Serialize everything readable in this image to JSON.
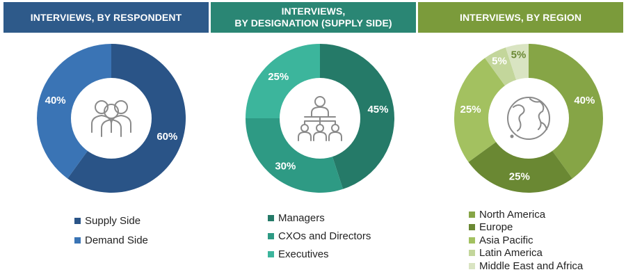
{
  "colors": {
    "header_1": "#2e5a8a",
    "header_2": "#2a8674",
    "header_3": "#7b9b3b",
    "center": "#ffffff",
    "icon": "#8a8a8a"
  },
  "chart_data": [
    {
      "type": "pie",
      "title_lines": [
        "INTERVIEWS, BY RESPONDENT"
      ],
      "icon": "people-group-icon",
      "series": [
        {
          "name": "Supply Side",
          "value": 60,
          "label": "60%",
          "color": "#2a5487",
          "label_color": "#ffffff"
        },
        {
          "name": "Demand Side",
          "value": 40,
          "label": "40%",
          "color": "#3a74b5",
          "label_color": "#ffffff"
        }
      ]
    },
    {
      "type": "pie",
      "title_lines": [
        "INTERVIEWS,",
        "BY DESIGNATION (SUPPLY SIDE)"
      ],
      "icon": "org-chart-icon",
      "series": [
        {
          "name": "Managers",
          "value": 45,
          "label": "45%",
          "color": "#257a68",
          "label_color": "#ffffff"
        },
        {
          "name": "CXOs and Directors",
          "value": 30,
          "label": "30%",
          "color": "#2e9a84",
          "label_color": "#ffffff"
        },
        {
          "name": "Executives",
          "value": 25,
          "label": "25%",
          "color": "#3cb59c",
          "label_color": "#ffffff"
        }
      ]
    },
    {
      "type": "pie",
      "title_lines": [
        "INTERVIEWS, BY REGION"
      ],
      "icon": "globe-icon",
      "series": [
        {
          "name": "North America",
          "value": 40,
          "label": "40%",
          "color": "#86a546",
          "label_color": "#ffffff"
        },
        {
          "name": "Europe",
          "value": 25,
          "label": "25%",
          "color": "#6a8833",
          "label_color": "#ffffff"
        },
        {
          "name": "Asia Pacific",
          "value": 25,
          "label": "25%",
          "color": "#a3c160",
          "label_color": "#ffffff"
        },
        {
          "name": "Latin America",
          "value": 5,
          "label": "5%",
          "color": "#c3d69b",
          "label_color": "#ffffff"
        },
        {
          "name": "Middle East and Africa",
          "value": 5,
          "label": "5%",
          "color": "#d9e4c2",
          "label_color": "#6a8833"
        }
      ]
    }
  ]
}
